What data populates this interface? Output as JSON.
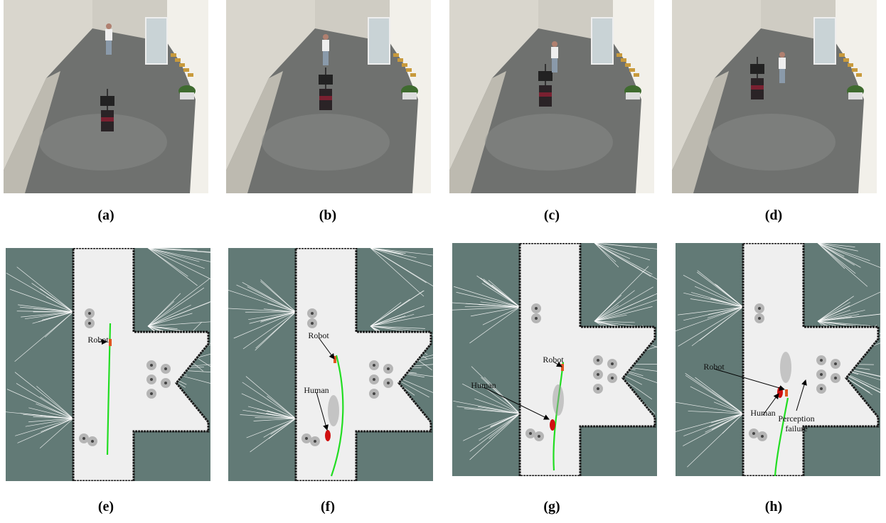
{
  "photos": [
    {
      "caption": "(a)"
    },
    {
      "caption": "(b)"
    },
    {
      "caption": "(c)"
    },
    {
      "caption": "(d)"
    }
  ],
  "maps": [
    {
      "caption": "(e)",
      "labels": [
        "Robot"
      ]
    },
    {
      "caption": "(f)",
      "labels": [
        "Robot",
        "Human"
      ]
    },
    {
      "caption": "(g)",
      "labels": [
        "Robot",
        "Human"
      ]
    },
    {
      "caption": "(h)",
      "labels": [
        "Robot",
        "Human",
        "Perception failure"
      ]
    }
  ]
}
